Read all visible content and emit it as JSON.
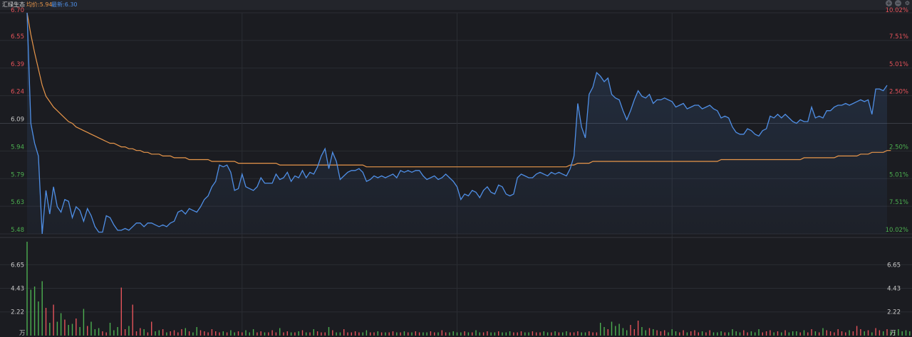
{
  "header": {
    "stock_name": "汇绿生态",
    "avg_label": "均价:5.94",
    "last_label": "最新:6.30"
  },
  "controls": {
    "plus": "+",
    "minus": "−",
    "gear": "⚙"
  },
  "colors": {
    "price_line": "#4f8fe6",
    "avg_line": "#e8964a",
    "up": "#e5535a",
    "down": "#4caf50",
    "grid": "#2b2d33",
    "bg": "#1b1c21"
  },
  "chart_data": {
    "type": "line",
    "title": "",
    "prev_close": 6.09,
    "price_axis": {
      "ticks": [
        "6.70",
        "6.55",
        "6.39",
        "6.24",
        "6.09",
        "5.94",
        "5.79",
        "5.63",
        "5.48"
      ],
      "pct_ticks": [
        "10.02%",
        "7.51%",
        "5.01%",
        "2.50%",
        "",
        "2.50%",
        "5.01%",
        "7.51%",
        "10.02%"
      ],
      "ylim": [
        5.48,
        6.7
      ]
    },
    "volume_axis": {
      "ticks": [
        "6.65",
        "4.43",
        "2.22"
      ],
      "unit": "万",
      "ylim": [
        0,
        8.8
      ]
    },
    "series": [
      {
        "key": "price",
        "values": [
          6.7,
          6.09,
          5.98,
          5.91,
          5.48,
          5.72,
          5.59,
          5.74,
          5.63,
          5.6,
          5.67,
          5.66,
          5.57,
          5.63,
          5.61,
          5.55,
          5.62,
          5.58,
          5.52,
          5.49,
          5.49,
          5.58,
          5.57,
          5.53,
          5.5,
          5.5,
          5.51,
          5.5,
          5.52,
          5.54,
          5.54,
          5.52,
          5.54,
          5.54,
          5.53,
          5.52,
          5.53,
          5.52,
          5.54,
          5.55,
          5.6,
          5.61,
          5.59,
          5.62,
          5.61,
          5.6,
          5.63,
          5.67,
          5.69,
          5.74,
          5.77,
          5.86,
          5.85,
          5.86,
          5.82,
          5.72,
          5.73,
          5.81,
          5.74,
          5.73,
          5.72,
          5.74,
          5.79,
          5.76,
          5.76,
          5.76,
          5.81,
          5.78,
          5.79,
          5.82,
          5.77,
          5.8,
          5.79,
          5.83,
          5.79,
          5.82,
          5.81,
          5.85,
          5.91,
          5.95,
          5.84,
          5.93,
          5.88,
          5.78,
          5.8,
          5.82,
          5.83,
          5.83,
          5.84,
          5.82,
          5.77,
          5.78,
          5.8,
          5.79,
          5.8,
          5.79,
          5.8,
          5.81,
          5.79,
          5.83,
          5.82,
          5.83,
          5.82,
          5.83,
          5.83,
          5.8,
          5.78,
          5.79,
          5.8,
          5.78,
          5.79,
          5.81,
          5.79,
          5.77,
          5.74,
          5.67,
          5.7,
          5.69,
          5.72,
          5.71,
          5.68,
          5.72,
          5.74,
          5.71,
          5.7,
          5.75,
          5.74,
          5.7,
          5.69,
          5.7,
          5.79,
          5.81,
          5.8,
          5.79,
          5.79,
          5.81,
          5.82,
          5.81,
          5.8,
          5.82,
          5.81,
          5.82,
          5.81,
          5.8,
          5.84,
          5.91,
          6.2,
          6.07,
          6.01,
          6.25,
          6.29,
          6.37,
          6.35,
          6.32,
          6.34,
          6.25,
          6.23,
          6.22,
          6.16,
          6.11,
          6.16,
          6.22,
          6.27,
          6.24,
          6.23,
          6.25,
          6.2,
          6.22,
          6.22,
          6.23,
          6.22,
          6.21,
          6.18,
          6.19,
          6.2,
          6.17,
          6.18,
          6.19,
          6.19,
          6.17,
          6.18,
          6.19,
          6.17,
          6.16,
          6.12,
          6.13,
          6.12,
          6.07,
          6.04,
          6.03,
          6.03,
          6.06,
          6.05,
          6.03,
          6.02,
          6.05,
          6.06,
          6.13,
          6.12,
          6.14,
          6.12,
          6.14,
          6.12,
          6.1,
          6.09,
          6.11,
          6.1,
          6.1,
          6.18,
          6.12,
          6.13,
          6.12,
          6.16,
          6.16,
          6.18,
          6.19,
          6.19,
          6.2,
          6.19,
          6.2,
          6.21,
          6.22,
          6.21,
          6.22,
          6.14,
          6.28,
          6.28,
          6.27,
          6.3
        ],
        "color": "#4f8fe6"
      },
      {
        "key": "average",
        "values": [
          6.7,
          6.58,
          6.48,
          6.39,
          6.3,
          6.24,
          6.21,
          6.18,
          6.16,
          6.14,
          6.12,
          6.1,
          6.09,
          6.07,
          6.06,
          6.05,
          6.04,
          6.03,
          6.02,
          6.01,
          6.0,
          5.99,
          5.98,
          5.98,
          5.97,
          5.96,
          5.96,
          5.95,
          5.95,
          5.94,
          5.94,
          5.93,
          5.93,
          5.92,
          5.92,
          5.92,
          5.91,
          5.91,
          5.91,
          5.9,
          5.9,
          5.9,
          5.9,
          5.89,
          5.89,
          5.89,
          5.89,
          5.89,
          5.89,
          5.88,
          5.88,
          5.88,
          5.88,
          5.88,
          5.88,
          5.88,
          5.87,
          5.87,
          5.87,
          5.87,
          5.87,
          5.87,
          5.87,
          5.87,
          5.87,
          5.87,
          5.87,
          5.86,
          5.86,
          5.86,
          5.86,
          5.86,
          5.86,
          5.86,
          5.86,
          5.86,
          5.86,
          5.86,
          5.86,
          5.86,
          5.86,
          5.86,
          5.86,
          5.86,
          5.86,
          5.86,
          5.86,
          5.86,
          5.86,
          5.86,
          5.85,
          5.85,
          5.85,
          5.85,
          5.85,
          5.85,
          5.85,
          5.85,
          5.85,
          5.85,
          5.85,
          5.85,
          5.85,
          5.85,
          5.85,
          5.85,
          5.85,
          5.85,
          5.85,
          5.85,
          5.85,
          5.85,
          5.85,
          5.85,
          5.85,
          5.85,
          5.85,
          5.85,
          5.85,
          5.85,
          5.85,
          5.85,
          5.85,
          5.85,
          5.85,
          5.85,
          5.85,
          5.85,
          5.85,
          5.85,
          5.85,
          5.85,
          5.85,
          5.85,
          5.85,
          5.85,
          5.85,
          5.85,
          5.85,
          5.85,
          5.85,
          5.85,
          5.85,
          5.85,
          5.86,
          5.86,
          5.87,
          5.87,
          5.87,
          5.87,
          5.88,
          5.88,
          5.88,
          5.88,
          5.88,
          5.88,
          5.88,
          5.88,
          5.88,
          5.88,
          5.88,
          5.88,
          5.88,
          5.88,
          5.88,
          5.88,
          5.88,
          5.88,
          5.88,
          5.88,
          5.88,
          5.88,
          5.88,
          5.88,
          5.88,
          5.88,
          5.88,
          5.88,
          5.88,
          5.88,
          5.88,
          5.88,
          5.88,
          5.88,
          5.89,
          5.89,
          5.89,
          5.89,
          5.89,
          5.89,
          5.89,
          5.89,
          5.89,
          5.89,
          5.89,
          5.89,
          5.89,
          5.89,
          5.89,
          5.89,
          5.89,
          5.89,
          5.89,
          5.89,
          5.89,
          5.89,
          5.9,
          5.9,
          5.9,
          5.9,
          5.9,
          5.9,
          5.9,
          5.9,
          5.9,
          5.91,
          5.91,
          5.91,
          5.91,
          5.91,
          5.91,
          5.92,
          5.92,
          5.92,
          5.93,
          5.93,
          5.93,
          5.93,
          5.94,
          5.94
        ],
        "color": "#e8964a"
      }
    ],
    "volume": [
      8.8,
      4.3,
      4.6,
      3.2,
      5.1,
      2.6,
      1.2,
      2.9,
      1.3,
      2.1,
      1.5,
      1.0,
      1.1,
      1.6,
      0.8,
      2.5,
      0.9,
      1.3,
      0.6,
      0.7,
      0.4,
      0.3,
      1.2,
      0.5,
      0.8,
      4.5,
      0.6,
      0.9,
      2.9,
      0.4,
      0.7,
      0.6,
      0.3,
      1.3,
      0.4,
      0.5,
      0.6,
      0.3,
      0.4,
      0.5,
      0.3,
      0.6,
      0.7,
      0.4,
      0.3,
      0.8,
      0.5,
      0.4,
      0.3,
      0.6,
      0.4,
      0.3,
      0.4,
      0.3,
      0.5,
      0.3,
      0.4,
      0.3,
      0.5,
      0.3,
      0.6,
      0.3,
      0.4,
      0.3,
      0.3,
      0.5,
      0.3,
      0.7,
      0.3,
      0.4,
      0.3,
      0.3,
      0.4,
      0.5,
      0.3,
      0.3,
      0.6,
      0.4,
      0.3,
      0.3,
      0.8,
      0.5,
      0.3,
      0.3,
      0.6,
      0.3,
      0.3,
      0.4,
      0.3,
      0.3,
      0.5,
      0.3,
      0.3,
      0.4,
      0.3,
      0.3,
      0.3,
      0.4,
      0.3,
      0.3,
      0.4,
      0.3,
      0.3,
      0.4,
      0.3,
      0.3,
      0.3,
      0.4,
      0.3,
      0.3,
      0.5,
      0.3,
      0.3,
      0.4,
      0.3,
      0.3,
      0.4,
      0.3,
      0.3,
      0.5,
      0.3,
      0.3,
      0.4,
      0.3,
      0.3,
      0.4,
      0.3,
      0.3,
      0.4,
      0.3,
      0.3,
      0.4,
      0.3,
      0.3,
      0.4,
      0.3,
      0.3,
      0.4,
      0.3,
      0.3,
      0.4,
      0.3,
      0.3,
      0.4,
      0.3,
      0.3,
      0.4,
      0.3,
      0.3,
      0.4,
      0.3,
      0.3,
      1.2,
      0.8,
      0.6,
      1.3,
      0.9,
      1.1,
      0.7,
      0.5,
      1.0,
      0.6,
      1.4,
      0.8,
      0.5,
      0.7,
      0.6,
      0.5,
      0.4,
      0.5,
      0.3,
      0.6,
      0.4,
      0.3,
      0.5,
      0.3,
      0.4,
      0.5,
      0.3,
      0.4,
      0.3,
      0.5,
      0.3,
      0.3,
      0.4,
      0.3,
      0.3,
      0.6,
      0.4,
      0.3,
      0.5,
      0.3,
      0.4,
      0.3,
      0.6,
      0.3,
      0.4,
      0.5,
      0.3,
      0.4,
      0.3,
      0.5,
      0.3,
      0.4,
      0.4,
      0.3,
      0.5,
      0.3,
      0.6,
      0.4,
      0.3,
      0.7,
      0.5,
      0.4,
      0.3,
      0.6,
      0.4,
      0.3,
      0.5,
      0.4,
      0.9,
      0.6,
      0.4,
      0.5,
      0.3,
      0.7,
      0.5,
      0.4,
      0.6,
      0.4,
      0.5,
      0.6,
      0.4,
      0.5,
      0.4,
      0.3,
      0.8,
      0.5,
      0.4,
      0.6,
      0.5,
      1.8,
      0.9,
      0.7,
      1.4
    ],
    "legend": [
      "均价:5.94",
      "最新:6.30"
    ],
    "grid": true
  }
}
